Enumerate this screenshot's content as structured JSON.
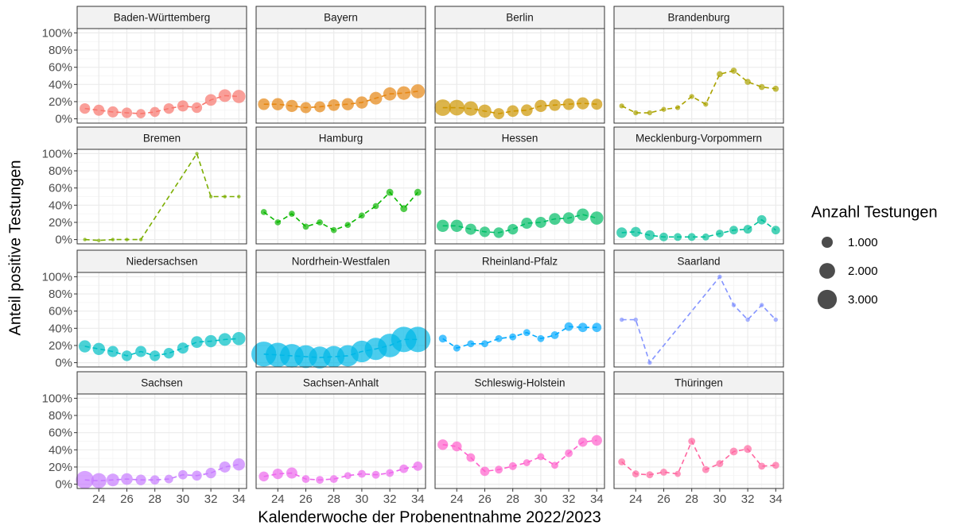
{
  "chart_data": {
    "type": "scatter",
    "x_label": "Kalenderwoche der Probenentnahme 2022/2023",
    "y_label": "Anteil positive Testungen",
    "xlim": [
      22.45,
      34.55
    ],
    "xticks": [
      24,
      26,
      28,
      30,
      32,
      34
    ],
    "ylim": [
      -5,
      105
    ],
    "yticks": [
      {
        "value": 0,
        "label": "0%"
      },
      {
        "value": 20,
        "label": "20%"
      },
      {
        "value": 40,
        "label": "40%"
      },
      {
        "value": 60,
        "label": "60%"
      },
      {
        "value": 80,
        "label": "80%"
      },
      {
        "value": 100,
        "label": "100%"
      }
    ],
    "grid": true,
    "size_legend": {
      "title": "Anzahl Testungen",
      "sizes": [
        {
          "value": 1000,
          "label": "1.000"
        },
        {
          "value": 2000,
          "label": "2.000"
        },
        {
          "value": 3000,
          "label": "3.000"
        }
      ]
    },
    "panels": [
      {
        "name": "Baden-Württemberg",
        "color": "#F8766D",
        "x": [
          23,
          24,
          25,
          26,
          27,
          28,
          29,
          30,
          31,
          32,
          33,
          34
        ],
        "values": [
          12,
          10,
          8,
          7,
          6,
          8,
          12,
          15,
          13,
          22,
          27,
          26
        ],
        "sizes": [
          900,
          1000,
          1000,
          900,
          700,
          800,
          900,
          1000,
          900,
          1100,
          1300,
          1400
        ]
      },
      {
        "name": "Bayern",
        "color": "#E68613",
        "x": [
          23,
          24,
          25,
          26,
          27,
          28,
          29,
          30,
          31,
          32,
          33,
          34
        ],
        "values": [
          17,
          17,
          15,
          13,
          14,
          16,
          17,
          19,
          24,
          29,
          30,
          32
        ],
        "sizes": [
          1100,
          1200,
          1200,
          1000,
          1000,
          1100,
          1200,
          1200,
          1300,
          1400,
          1500,
          1600
        ]
      },
      {
        "name": "Berlin",
        "color": "#CD9600",
        "x": [
          23,
          24,
          25,
          26,
          27,
          28,
          29,
          30,
          31,
          32,
          33,
          34
        ],
        "values": [
          13,
          13,
          12,
          9,
          6,
          9,
          10,
          15,
          16,
          17,
          18,
          17
        ],
        "sizes": [
          2200,
          2000,
          1700,
          1400,
          1000,
          1100,
          1100,
          1200,
          1100,
          1100,
          1200,
          1000
        ]
      },
      {
        "name": "Brandenburg",
        "color": "#ABA300",
        "x": [
          23,
          24,
          25,
          26,
          27,
          28,
          29,
          30,
          31,
          32,
          33,
          34
        ],
        "values": [
          15,
          7,
          7,
          11,
          13,
          26,
          17,
          52,
          56,
          43,
          37,
          35
        ],
        "sizes": [
          200,
          200,
          200,
          200,
          200,
          200,
          200,
          300,
          300,
          300,
          300,
          300
        ]
      },
      {
        "name": "Bremen",
        "color": "#7CAE00",
        "x": [
          23,
          24,
          25,
          26,
          27,
          31,
          32,
          33,
          34
        ],
        "values": [
          0,
          -1,
          0,
          0,
          0,
          100,
          50,
          50,
          50
        ],
        "sizes": [
          100,
          100,
          100,
          100,
          100,
          100,
          100,
          100,
          100
        ]
      },
      {
        "name": "Hamburg",
        "color": "#0CB702",
        "x": [
          23,
          24,
          25,
          26,
          27,
          28,
          29,
          30,
          31,
          32,
          33,
          34
        ],
        "values": [
          32,
          20,
          30,
          15,
          20,
          11,
          17,
          28,
          39,
          55,
          36,
          55
        ],
        "sizes": [
          300,
          300,
          300,
          300,
          300,
          300,
          300,
          300,
          300,
          400,
          400,
          400
        ]
      },
      {
        "name": "Hessen",
        "color": "#00BE67",
        "x": [
          23,
          24,
          25,
          26,
          27,
          28,
          29,
          30,
          31,
          32,
          33,
          34
        ],
        "values": [
          16,
          16,
          12,
          9,
          8,
          12,
          19,
          20,
          24,
          25,
          29,
          25
        ],
        "sizes": [
          1200,
          1200,
          1000,
          900,
          900,
          900,
          1000,
          1000,
          1100,
          1100,
          1200,
          1400
        ]
      },
      {
        "name": "Mecklenburg-Vorpommern",
        "color": "#00C19A",
        "x": [
          23,
          24,
          25,
          26,
          27,
          28,
          29,
          30,
          31,
          32,
          33,
          34
        ],
        "values": [
          8,
          9,
          5,
          3,
          3,
          3,
          3,
          7,
          11,
          12,
          23,
          11
        ],
        "sizes": [
          900,
          800,
          800,
          600,
          500,
          500,
          400,
          500,
          600,
          600,
          700,
          600
        ]
      },
      {
        "name": "Niedersachsen",
        "color": "#00BFC4",
        "x": [
          23,
          24,
          25,
          26,
          27,
          28,
          29,
          30,
          31,
          32,
          33,
          34
        ],
        "values": [
          19,
          16,
          13,
          8,
          13,
          8,
          11,
          17,
          24,
          25,
          27,
          28
        ],
        "sizes": [
          1200,
          1200,
          1000,
          900,
          1000,
          900,
          900,
          1000,
          1100,
          1200,
          1300,
          1400
        ]
      },
      {
        "name": "Nordrhein-Westfalen",
        "color": "#00B8E7",
        "x": [
          23,
          24,
          25,
          26,
          27,
          28,
          29,
          30,
          31,
          32,
          33,
          34
        ],
        "values": [
          10,
          9,
          8,
          7,
          6,
          7,
          8,
          13,
          16,
          20,
          27,
          27
        ],
        "sizes": [
          5000,
          4800,
          4500,
          4200,
          3900,
          3700,
          3700,
          3800,
          4000,
          4500,
          5200,
          5200
        ]
      },
      {
        "name": "Rheinland-Pfalz",
        "color": "#00A9FF",
        "x": [
          23,
          24,
          25,
          26,
          27,
          28,
          29,
          30,
          31,
          32,
          33,
          34
        ],
        "values": [
          28,
          17,
          22,
          22,
          28,
          30,
          35,
          28,
          32,
          42,
          41,
          41
        ],
        "sizes": [
          500,
          400,
          400,
          400,
          400,
          400,
          400,
          400,
          500,
          600,
          700,
          700
        ]
      },
      {
        "name": "Saarland",
        "color": "#8494FF",
        "x": [
          23,
          24,
          25,
          30,
          31,
          32,
          33,
          34
        ],
        "values": [
          50,
          50,
          0,
          100,
          67,
          50,
          67,
          50
        ],
        "sizes": [
          150,
          150,
          150,
          150,
          150,
          150,
          150,
          150
        ]
      },
      {
        "name": "Sachsen",
        "color": "#C77CFF",
        "x": [
          23,
          24,
          25,
          26,
          27,
          28,
          29,
          30,
          31,
          32,
          33,
          34
        ],
        "values": [
          5,
          4,
          5,
          6,
          5,
          5,
          6,
          11,
          10,
          13,
          20,
          23
        ],
        "sizes": [
          2600,
          1900,
          1300,
          1100,
          900,
          700,
          600,
          700,
          800,
          900,
          1000,
          1200
        ]
      },
      {
        "name": "Sachsen-Anhalt",
        "color": "#ED68ED",
        "x": [
          23,
          24,
          25,
          26,
          27,
          28,
          29,
          30,
          31,
          32,
          33,
          34
        ],
        "values": [
          9,
          12,
          13,
          6,
          5,
          6,
          10,
          12,
          11,
          13,
          18,
          21
        ],
        "sizes": [
          800,
          900,
          1000,
          500,
          500,
          500,
          400,
          500,
          500,
          500,
          600,
          700
        ]
      },
      {
        "name": "Schleswig-Holstein",
        "color": "#FF61CC",
        "x": [
          23,
          24,
          25,
          26,
          27,
          28,
          29,
          30,
          31,
          32,
          33,
          34
        ],
        "values": [
          46,
          44,
          31,
          15,
          17,
          21,
          25,
          32,
          22,
          36,
          49,
          51
        ],
        "sizes": [
          900,
          800,
          600,
          700,
          500,
          500,
          400,
          400,
          400,
          500,
          700,
          900
        ]
      },
      {
        "name": "Thüringen",
        "color": "#FF68A1",
        "x": [
          23,
          24,
          25,
          26,
          27,
          28,
          29,
          30,
          31,
          32,
          33,
          34
        ],
        "values": [
          26,
          12,
          11,
          14,
          12,
          50,
          17,
          24,
          38,
          41,
          21,
          22
        ],
        "sizes": [
          400,
          400,
          400,
          400,
          300,
          400,
          400,
          400,
          500,
          500,
          400,
          400
        ]
      }
    ]
  }
}
